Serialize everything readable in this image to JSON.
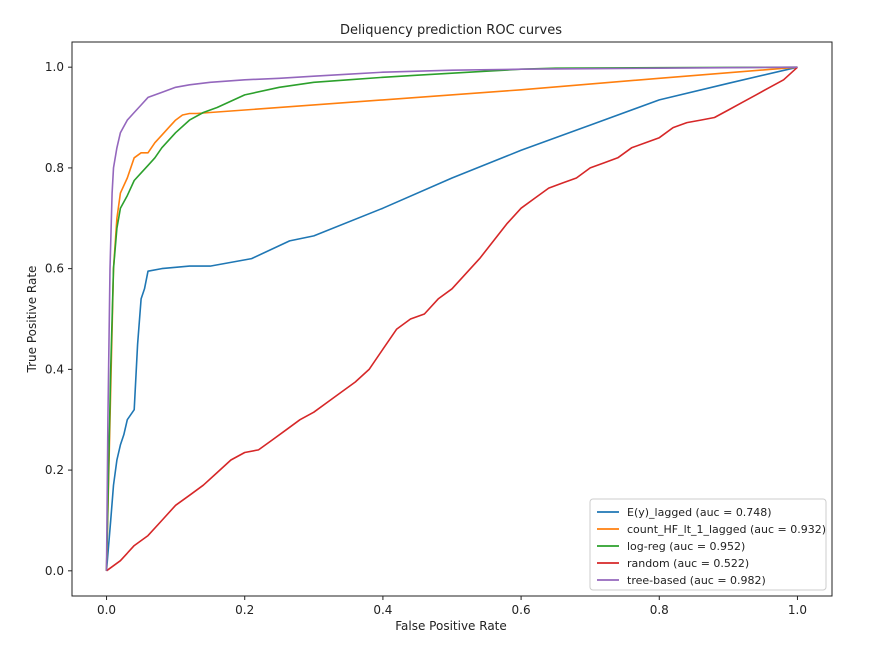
{
  "chart_data": {
    "type": "line",
    "title": "Deliquency prediction ROC curves",
    "xlabel": "False Positive Rate",
    "ylabel": "True Positive Rate",
    "xlim": [
      -0.05,
      1.05
    ],
    "ylim": [
      -0.05,
      1.05
    ],
    "xticks": [
      0.0,
      0.2,
      0.4,
      0.6,
      0.8,
      1.0
    ],
    "yticks": [
      0.0,
      0.2,
      0.4,
      0.6,
      0.8,
      1.0
    ],
    "xtick_labels": [
      "0.0",
      "0.2",
      "0.4",
      "0.6",
      "0.8",
      "1.0"
    ],
    "ytick_labels": [
      "0.0",
      "0.2",
      "0.4",
      "0.6",
      "0.8",
      "1.0"
    ],
    "grid": false,
    "legend_position": "lower-right",
    "series": [
      {
        "name": "E(y)_lagged (auc = 0.748)",
        "color": "#1f77b4",
        "x": [
          0.0,
          0.003,
          0.006,
          0.01,
          0.015,
          0.02,
          0.025,
          0.03,
          0.04,
          0.045,
          0.05,
          0.055,
          0.06,
          0.08,
          0.12,
          0.15,
          0.21,
          0.265,
          0.3,
          0.4,
          0.5,
          0.6,
          0.7,
          0.8,
          0.9,
          1.0
        ],
        "y": [
          0.0,
          0.05,
          0.1,
          0.17,
          0.22,
          0.25,
          0.27,
          0.3,
          0.32,
          0.45,
          0.54,
          0.56,
          0.595,
          0.6,
          0.605,
          0.605,
          0.62,
          0.655,
          0.665,
          0.72,
          0.78,
          0.835,
          0.885,
          0.935,
          0.968,
          1.0
        ]
      },
      {
        "name": "count_HF_lt_1_lagged (auc = 0.932)",
        "color": "#ff7f0e",
        "x": [
          0.0,
          0.005,
          0.01,
          0.015,
          0.02,
          0.03,
          0.04,
          0.05,
          0.06,
          0.07,
          0.08,
          0.09,
          0.1,
          0.11,
          0.12,
          0.13,
          0.2,
          0.4,
          0.6,
          0.8,
          1.0
        ],
        "y": [
          0.0,
          0.3,
          0.6,
          0.7,
          0.75,
          0.78,
          0.82,
          0.83,
          0.83,
          0.85,
          0.865,
          0.88,
          0.895,
          0.905,
          0.908,
          0.908,
          0.915,
          0.935,
          0.955,
          0.978,
          1.0
        ]
      },
      {
        "name": "log-reg (auc = 0.952)",
        "color": "#2ca02c",
        "x": [
          0.0,
          0.003,
          0.006,
          0.01,
          0.015,
          0.02,
          0.03,
          0.04,
          0.05,
          0.06,
          0.07,
          0.08,
          0.1,
          0.12,
          0.14,
          0.16,
          0.2,
          0.25,
          0.3,
          0.35,
          0.4,
          0.45,
          0.5,
          0.55,
          0.6,
          0.65,
          0.8,
          1.0
        ],
        "y": [
          0.0,
          0.2,
          0.4,
          0.6,
          0.68,
          0.72,
          0.745,
          0.775,
          0.79,
          0.805,
          0.82,
          0.84,
          0.87,
          0.895,
          0.91,
          0.92,
          0.945,
          0.96,
          0.97,
          0.975,
          0.98,
          0.984,
          0.988,
          0.992,
          0.996,
          0.998,
          0.999,
          1.0
        ]
      },
      {
        "name": "random (auc = 0.522)",
        "color": "#d62728",
        "x": [
          0.0,
          0.02,
          0.04,
          0.06,
          0.08,
          0.1,
          0.12,
          0.14,
          0.16,
          0.18,
          0.2,
          0.22,
          0.24,
          0.26,
          0.28,
          0.3,
          0.32,
          0.34,
          0.36,
          0.38,
          0.4,
          0.42,
          0.44,
          0.46,
          0.48,
          0.5,
          0.52,
          0.54,
          0.56,
          0.58,
          0.6,
          0.62,
          0.64,
          0.66,
          0.68,
          0.7,
          0.72,
          0.74,
          0.76,
          0.78,
          0.8,
          0.82,
          0.84,
          0.86,
          0.88,
          0.9,
          0.92,
          0.94,
          0.96,
          0.98,
          1.0
        ],
        "y": [
          0.0,
          0.02,
          0.05,
          0.07,
          0.1,
          0.13,
          0.15,
          0.17,
          0.195,
          0.22,
          0.235,
          0.24,
          0.26,
          0.28,
          0.3,
          0.315,
          0.335,
          0.355,
          0.375,
          0.4,
          0.44,
          0.48,
          0.5,
          0.51,
          0.54,
          0.56,
          0.59,
          0.62,
          0.655,
          0.69,
          0.72,
          0.74,
          0.76,
          0.77,
          0.78,
          0.8,
          0.81,
          0.82,
          0.84,
          0.85,
          0.86,
          0.88,
          0.89,
          0.895,
          0.9,
          0.915,
          0.93,
          0.945,
          0.96,
          0.975,
          1.0
        ]
      },
      {
        "name": "tree-based (auc = 0.982)",
        "color": "#9467bd",
        "x": [
          0.0,
          0.002,
          0.005,
          0.008,
          0.01,
          0.015,
          0.02,
          0.03,
          0.04,
          0.05,
          0.06,
          0.08,
          0.1,
          0.12,
          0.15,
          0.2,
          0.25,
          0.3,
          0.35,
          0.4,
          0.45,
          0.5,
          0.6,
          0.7,
          0.8,
          0.9,
          1.0
        ],
        "y": [
          0.0,
          0.3,
          0.6,
          0.75,
          0.8,
          0.84,
          0.87,
          0.895,
          0.91,
          0.925,
          0.94,
          0.95,
          0.96,
          0.965,
          0.97,
          0.975,
          0.978,
          0.982,
          0.986,
          0.99,
          0.992,
          0.994,
          0.996,
          0.997,
          0.998,
          0.999,
          1.0
        ]
      }
    ]
  }
}
